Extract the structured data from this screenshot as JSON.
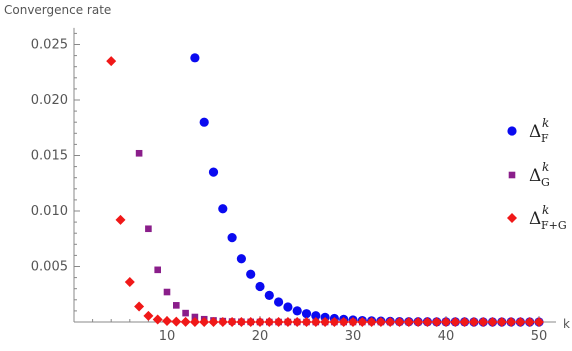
{
  "chart_data": {
    "type": "scatter",
    "ylabel": "Convergence rate",
    "xlabel": "k",
    "xlim": [
      0,
      50
    ],
    "ylim": [
      0,
      0.0265
    ],
    "x_ticks": [
      10,
      20,
      30,
      40,
      50
    ],
    "y_ticks": [
      0.005,
      0.01,
      0.015,
      0.02,
      0.025
    ],
    "x_tick_labels": [
      "10",
      "20",
      "30",
      "40",
      "50"
    ],
    "y_tick_labels": [
      "0.005",
      "0.010",
      "0.015",
      "0.020",
      "0.025"
    ],
    "legend_placement": "right",
    "series": [
      {
        "symbol": "Δ",
        "sup": "k",
        "sub": "F",
        "color": "#0a0af0",
        "marker": "circle",
        "x": [
          13,
          14,
          15,
          16,
          17,
          18,
          19,
          20,
          21,
          22,
          23,
          24,
          25,
          26,
          27,
          28,
          29,
          30,
          31,
          32,
          33,
          34,
          35,
          36,
          37,
          38,
          39,
          40,
          41,
          42,
          43,
          44,
          45,
          46,
          47,
          48,
          49,
          50
        ],
        "y": [
          0.0238,
          0.018,
          0.0135,
          0.0102,
          0.0076,
          0.0057,
          0.0043,
          0.0032,
          0.0024,
          0.0018,
          0.00135,
          0.001,
          0.00075,
          0.00056,
          0.00042,
          0.00032,
          0.00024,
          0.00018,
          0.00013,
          0.0001,
          8e-05,
          6e-05,
          4e-05,
          3e-05,
          2e-05,
          2e-05,
          1e-05,
          1e-05,
          1e-05,
          1e-05,
          0,
          0,
          0,
          0,
          0,
          0,
          0,
          0
        ]
      },
      {
        "symbol": "Δ",
        "sup": "k",
        "sub": "G",
        "color": "#8a1e8a",
        "marker": "square",
        "x": [
          7,
          8,
          9,
          10,
          11,
          12,
          13,
          14,
          15,
          16,
          17,
          18,
          19,
          20,
          21,
          22,
          23,
          24,
          25,
          26,
          27,
          28,
          29,
          30,
          31,
          32,
          33,
          34,
          35,
          36,
          37,
          38,
          39,
          40,
          41,
          42,
          43,
          44,
          45,
          46,
          47,
          48,
          49,
          50
        ],
        "y": [
          0.0152,
          0.0084,
          0.0047,
          0.0027,
          0.0015,
          0.0008,
          0.00045,
          0.00025,
          0.00014,
          8e-05,
          4e-05,
          2e-05,
          1e-05,
          0,
          0,
          0,
          0,
          0,
          0,
          0,
          0,
          0,
          0,
          0,
          0,
          0,
          0,
          0,
          0,
          0,
          0,
          0,
          0,
          0,
          0,
          0,
          0,
          0,
          0,
          0,
          0,
          0,
          0,
          0
        ]
      },
      {
        "symbol": "Δ",
        "sup": "k",
        "sub": "F+G",
        "color": "#f01818",
        "marker": "diamond",
        "x": [
          4,
          5,
          6,
          7,
          8,
          9,
          10,
          11,
          12,
          13,
          14,
          15,
          16,
          17,
          18,
          19,
          20,
          21,
          22,
          23,
          24,
          25,
          26,
          27,
          28,
          29,
          30,
          31,
          32,
          33,
          34,
          35,
          36,
          37,
          38,
          39,
          40,
          41,
          42,
          43,
          44,
          45,
          46,
          47,
          48,
          49,
          50
        ],
        "y": [
          0.0235,
          0.0092,
          0.0036,
          0.0014,
          0.00055,
          0.00022,
          9e-05,
          3e-05,
          1e-05,
          0,
          0,
          0,
          0,
          0,
          0,
          0,
          0,
          0,
          0,
          0,
          0,
          0,
          0,
          0,
          0,
          0,
          0,
          0,
          0,
          0,
          0,
          0,
          0,
          0,
          0,
          0,
          0,
          0,
          0,
          0,
          0,
          0,
          0,
          0,
          0,
          0,
          0
        ]
      }
    ]
  }
}
